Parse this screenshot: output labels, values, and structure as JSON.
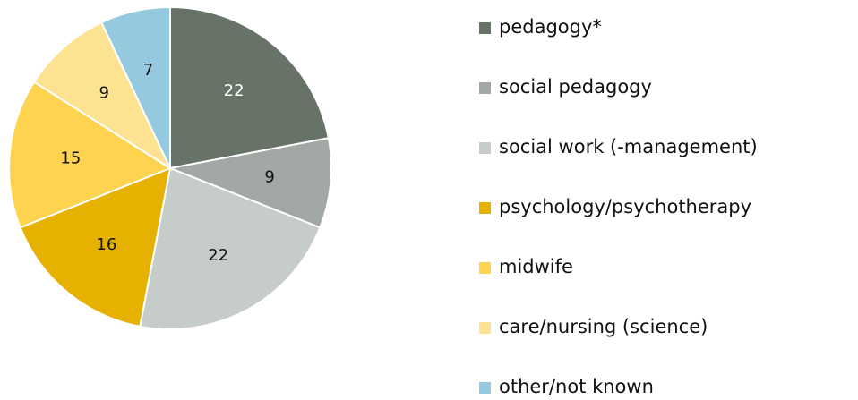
{
  "chart_data": {
    "type": "pie",
    "categories": [
      "pedagogy*",
      "social pedagogy",
      "social work (-management)",
      "psychology/psychotherapy",
      "midwife",
      "care/nursing (science)",
      "other/not known"
    ],
    "values": [
      22,
      9,
      22,
      16,
      15,
      9,
      7
    ],
    "colors": [
      "#667366",
      "#a2a9a4",
      "#c6ccc9",
      "#e6b100",
      "#fdd350",
      "#fde391",
      "#94c9df"
    ],
    "label_colors": [
      "#ffffff",
      "#111111",
      "#111111",
      "#111111",
      "#111111",
      "#111111",
      "#111111"
    ],
    "legend": "right"
  }
}
